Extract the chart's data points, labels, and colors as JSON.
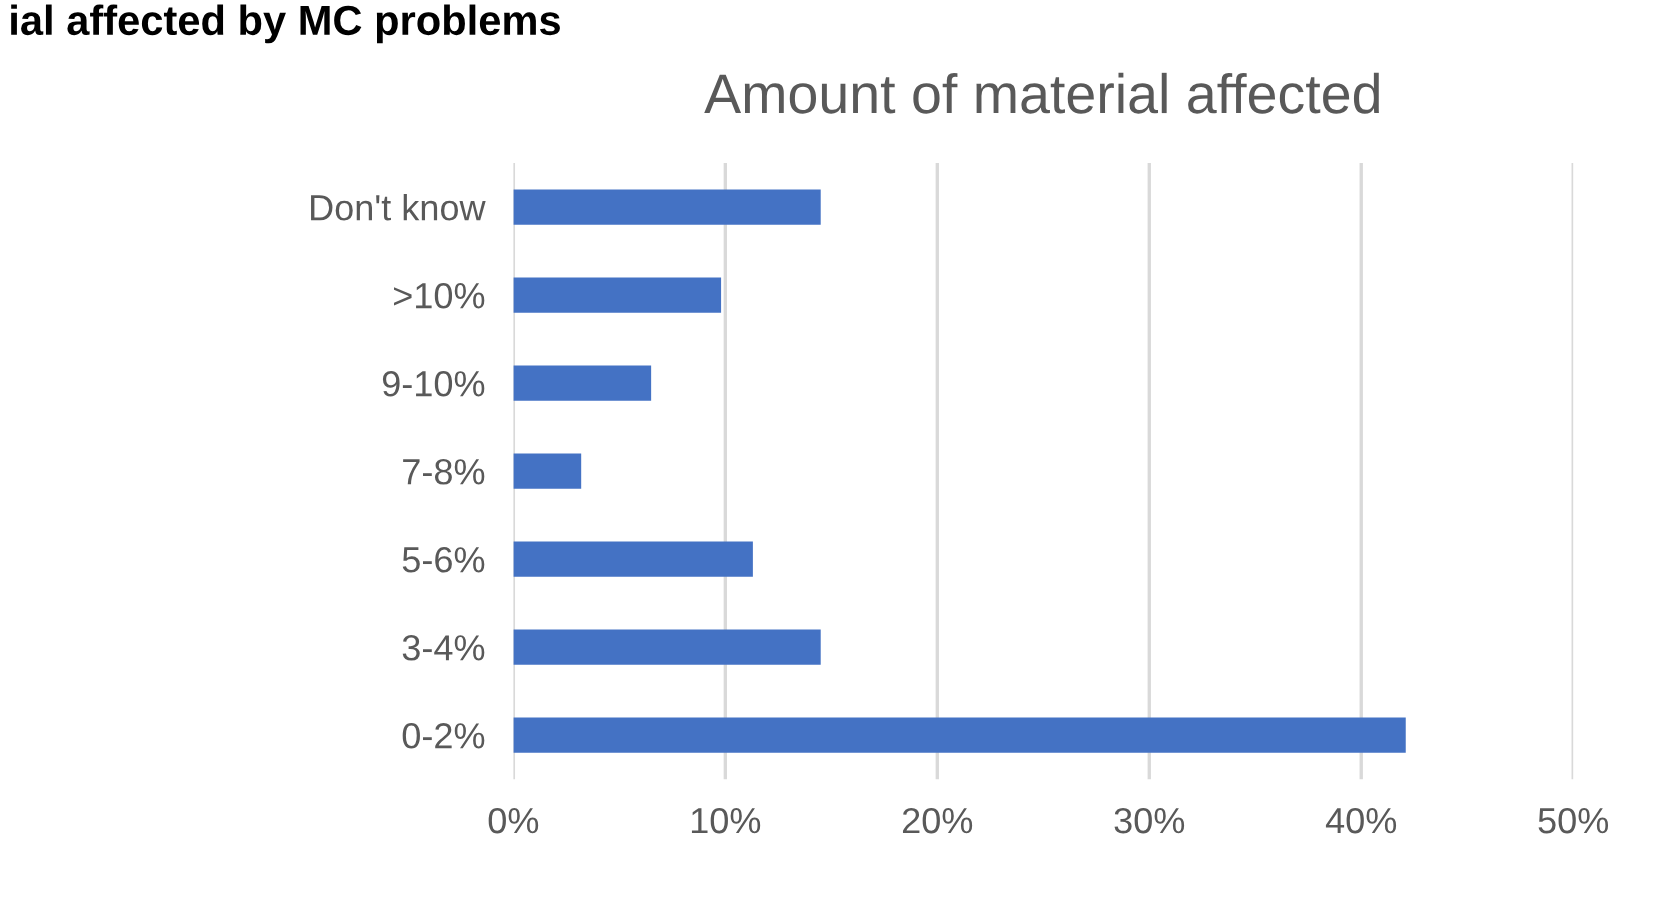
{
  "chart_data": {
    "type": "bar",
    "orientation": "horizontal",
    "title": "Amount of material affected",
    "annotations": [
      "ial affected by MC problems"
    ],
    "categories": [
      "Don't know",
      ">10%",
      "9-10%",
      "7-8%",
      "5-6%",
      "3-4%",
      "0-2%"
    ],
    "values": [
      14.5,
      9.8,
      6.5,
      3.2,
      11.3,
      14.5,
      42.1
    ],
    "color": "#4472c4",
    "xlim": [
      0,
      50
    ],
    "xticks": [
      {
        "value": 0,
        "label": "0%"
      },
      {
        "value": 10,
        "label": "10%"
      },
      {
        "value": 20,
        "label": "20%"
      },
      {
        "value": 30,
        "label": "30%"
      },
      {
        "value": 40,
        "label": "40%"
      },
      {
        "value": 50,
        "label": "50%"
      }
    ],
    "grid": "x",
    "legend": false
  }
}
